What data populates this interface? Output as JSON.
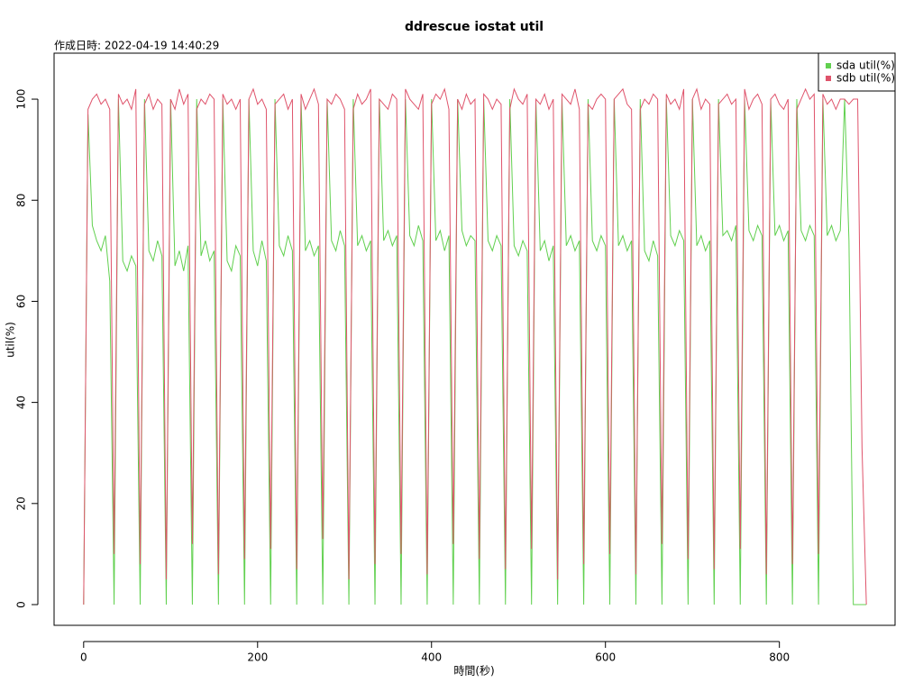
{
  "chart_data": {
    "type": "line",
    "title": "ddrescue iostat util",
    "subtitle": "作成日時: 2022-04-19 14:40:29",
    "x_label": "時間(秒)",
    "y_label": "util(%)",
    "x": [
      0,
      5,
      10,
      15,
      20,
      25,
      30,
      35,
      40,
      45,
      50,
      55,
      60,
      65,
      70,
      75,
      80,
      85,
      90,
      95,
      100,
      105,
      110,
      115,
      120,
      125,
      130,
      135,
      140,
      145,
      150,
      155,
      160,
      165,
      170,
      175,
      180,
      185,
      190,
      195,
      200,
      205,
      210,
      215,
      220,
      225,
      230,
      235,
      240,
      245,
      250,
      255,
      260,
      265,
      270,
      275,
      280,
      285,
      290,
      295,
      300,
      305,
      310,
      315,
      320,
      325,
      330,
      335,
      340,
      345,
      350,
      355,
      360,
      365,
      370,
      375,
      380,
      385,
      390,
      395,
      400,
      405,
      410,
      415,
      420,
      425,
      430,
      435,
      440,
      445,
      450,
      455,
      460,
      465,
      470,
      475,
      480,
      485,
      490,
      495,
      500,
      505,
      510,
      515,
      520,
      525,
      530,
      535,
      540,
      545,
      550,
      555,
      560,
      565,
      570,
      575,
      580,
      585,
      590,
      595,
      600,
      605,
      610,
      615,
      620,
      625,
      630,
      635,
      640,
      645,
      650,
      655,
      660,
      665,
      670,
      675,
      680,
      685,
      690,
      695,
      700,
      705,
      710,
      715,
      720,
      725,
      730,
      735,
      740,
      745,
      750,
      755,
      760,
      765,
      770,
      775,
      780,
      785,
      790,
      795,
      800,
      805,
      810,
      815,
      820,
      825,
      830,
      835,
      840,
      845,
      850,
      855,
      860,
      865,
      870,
      875,
      880,
      885,
      890,
      895,
      900
    ],
    "series": [
      {
        "name": "sda util(%)",
        "color": "#61D04F",
        "values": [
          0,
          97,
          75,
          72,
          70,
          73,
          64,
          0,
          100,
          68,
          66,
          69,
          67,
          0,
          100,
          70,
          68,
          72,
          69,
          0,
          100,
          67,
          70,
          66,
          71,
          0,
          100,
          69,
          72,
          68,
          70,
          0,
          100,
          68,
          66,
          71,
          69,
          0,
          100,
          70,
          67,
          72,
          68,
          0,
          100,
          71,
          69,
          73,
          70,
          0,
          100,
          70,
          72,
          69,
          71,
          0,
          100,
          72,
          70,
          74,
          71,
          0,
          100,
          71,
          73,
          70,
          72,
          0,
          100,
          72,
          74,
          71,
          73,
          0,
          100,
          73,
          71,
          75,
          72,
          0,
          100,
          72,
          74,
          70,
          73,
          0,
          100,
          74,
          71,
          73,
          72,
          0,
          100,
          72,
          70,
          73,
          71,
          0,
          100,
          71,
          69,
          72,
          70,
          0,
          100,
          70,
          72,
          68,
          71,
          0,
          100,
          71,
          73,
          70,
          72,
          0,
          100,
          72,
          70,
          73,
          71,
          0,
          100,
          71,
          73,
          70,
          72,
          0,
          100,
          70,
          68,
          72,
          69,
          0,
          100,
          73,
          71,
          74,
          72,
          0,
          100,
          71,
          73,
          70,
          72,
          0,
          100,
          73,
          74,
          72,
          75,
          0,
          100,
          74,
          72,
          75,
          73,
          0,
          100,
          73,
          75,
          72,
          74,
          0,
          100,
          74,
          72,
          75,
          73,
          0,
          100,
          73,
          75,
          72,
          74,
          100,
          72,
          0,
          0,
          0,
          0
        ]
      },
      {
        "name": "sdb util(%)",
        "color": "#DF536B",
        "values": [
          0,
          98,
          100,
          101,
          99,
          100,
          98,
          10,
          101,
          99,
          100,
          98,
          102,
          8,
          99,
          101,
          98,
          100,
          99,
          5,
          100,
          98,
          102,
          99,
          101,
          12,
          98,
          100,
          99,
          101,
          100,
          6,
          101,
          99,
          100,
          98,
          100,
          9,
          100,
          102,
          99,
          100,
          98,
          11,
          99,
          100,
          101,
          98,
          100,
          7,
          101,
          98,
          100,
          102,
          99,
          13,
          100,
          99,
          101,
          100,
          98,
          5,
          98,
          101,
          99,
          100,
          102,
          8,
          100,
          99,
          98,
          101,
          100,
          10,
          102,
          100,
          99,
          98,
          101,
          6,
          99,
          101,
          100,
          102,
          98,
          12,
          100,
          98,
          101,
          99,
          100,
          9,
          101,
          100,
          98,
          100,
          99,
          7,
          98,
          102,
          100,
          99,
          101,
          11,
          100,
          99,
          101,
          98,
          100,
          5,
          101,
          100,
          99,
          102,
          98,
          8,
          99,
          98,
          100,
          101,
          100,
          10,
          100,
          101,
          102,
          99,
          98,
          6,
          98,
          100,
          99,
          101,
          100,
          12,
          101,
          99,
          100,
          98,
          102,
          9,
          100,
          102,
          98,
          100,
          99,
          7,
          99,
          100,
          101,
          99,
          100,
          11,
          102,
          98,
          100,
          101,
          99,
          6,
          100,
          101,
          99,
          98,
          100,
          8,
          98,
          100,
          102,
          100,
          101,
          10,
          101,
          99,
          100,
          98,
          100,
          100,
          99,
          100,
          100,
          31,
          0
        ]
      }
    ],
    "xlim": [
      -34,
      933
    ],
    "ylim": [
      -4.1,
      109.1
    ],
    "xticks": [
      0,
      200,
      400,
      600,
      800
    ],
    "yticks": [
      0,
      20,
      40,
      60,
      80,
      100
    ],
    "legend": "top-right"
  }
}
